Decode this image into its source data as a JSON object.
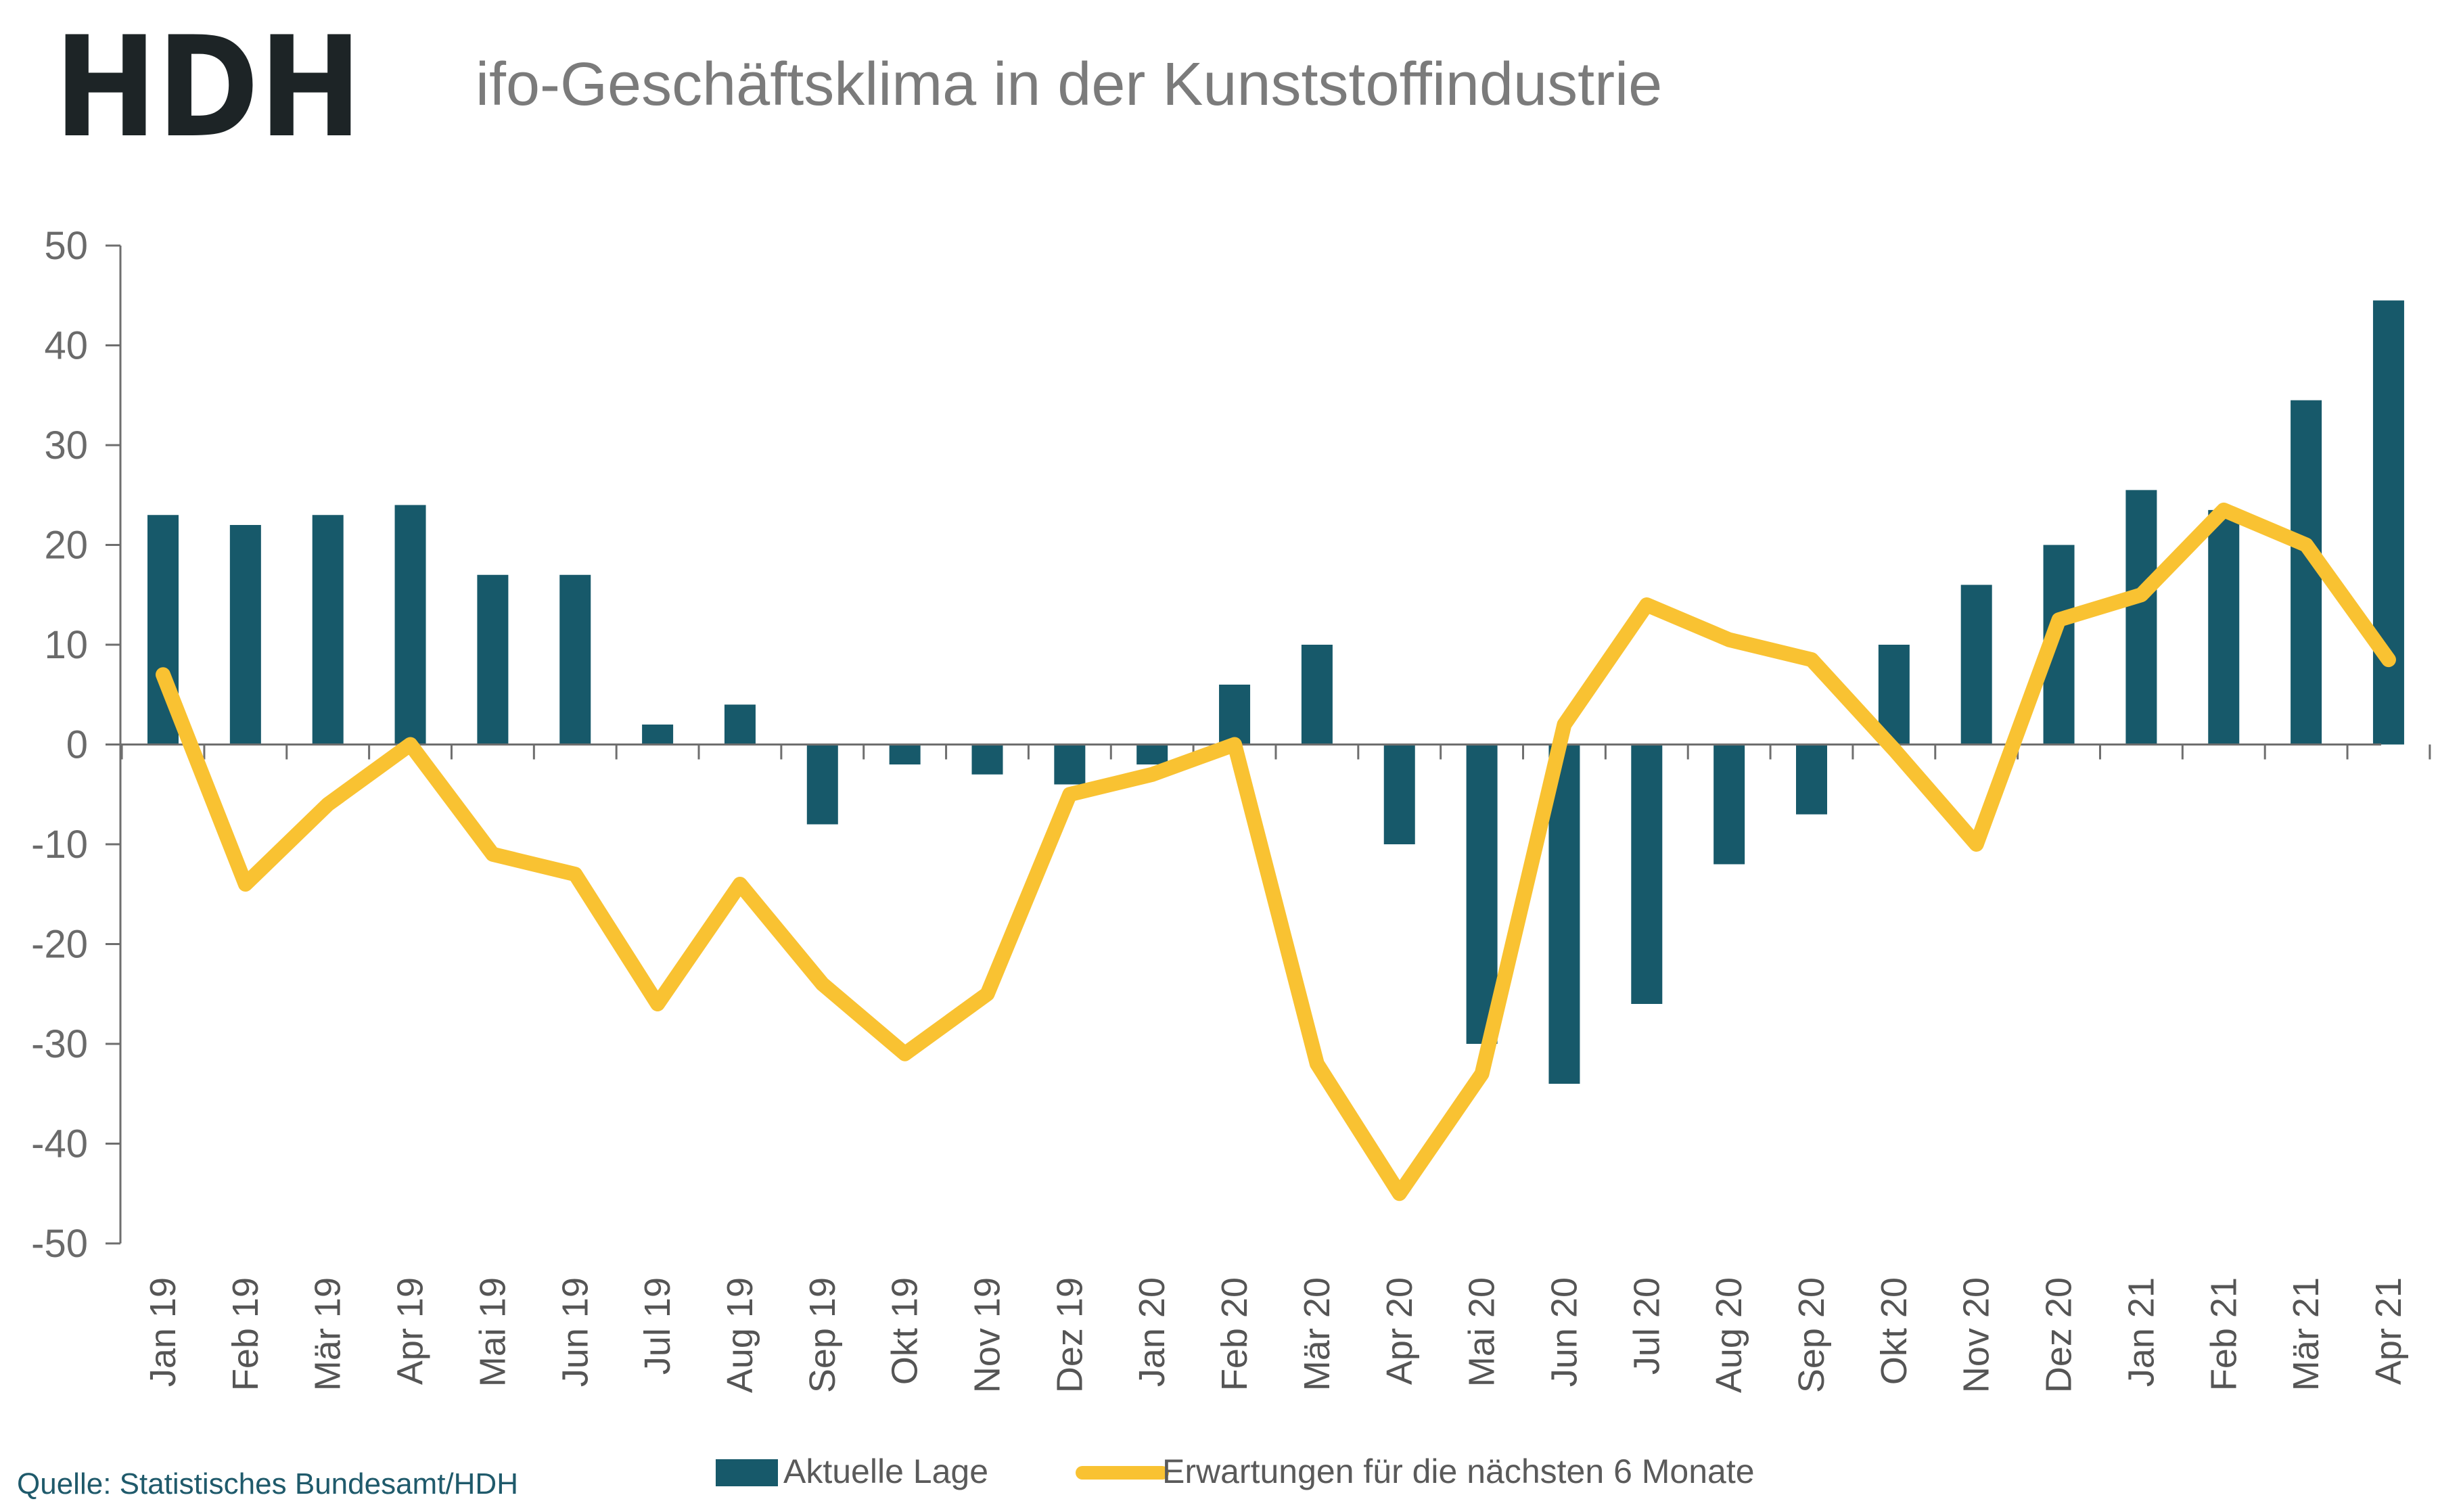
{
  "logo_text": "HDH",
  "source_text": "Quelle: Statistisches Bundesamt/HDH",
  "colors": {
    "bar": "#17596a",
    "line": "#f9c232",
    "axis": "#6e6e6e"
  },
  "chart_data": {
    "type": "bar+line",
    "title": "ifo-Geschäftsklima in der Kunststoffindustrie",
    "ylim": [
      -50,
      50
    ],
    "yticks": [
      50,
      40,
      30,
      20,
      10,
      0,
      -10,
      -20,
      -30,
      -40,
      -50
    ],
    "categories": [
      "Jan 19",
      "Feb 19",
      "Mär 19",
      "Apr 19",
      "Mai 19",
      "Jun 19",
      "Jul 19",
      "Aug 19",
      "Sep 19",
      "Okt 19",
      "Nov 19",
      "Dez 19",
      "Jan 20",
      "Feb 20",
      "Mär 20",
      "Apr 20",
      "Mai 20",
      "Jun 20",
      "Jul 20",
      "Aug 20",
      "Sep 20",
      "Okt 20",
      "Nov 20",
      "Dez 20",
      "Jan 21",
      "Feb 21",
      "Mär 21",
      "Apr 21"
    ],
    "series": [
      {
        "name": "Aktuelle Lage",
        "type": "bar",
        "values": [
          23,
          22,
          23,
          24,
          17,
          17,
          2,
          4,
          -8,
          -2,
          -3,
          -4,
          -2,
          6,
          10,
          -10,
          -30,
          -34,
          -26,
          -12,
          -7,
          10,
          16,
          20,
          25.5,
          23.5,
          34.5,
          44.5
        ]
      },
      {
        "name": "Erwartungen für die nächsten 6 Monate",
        "type": "line",
        "values": [
          7,
          -14,
          -6,
          0,
          -11,
          -13,
          -26,
          -14,
          -24,
          -31,
          -25,
          -5,
          -3,
          0,
          -32,
          -45,
          -33,
          2,
          14,
          10.5,
          8.5,
          -0.5,
          -10,
          12.5,
          15,
          23.5,
          20,
          8.5
        ]
      }
    ],
    "legend_position": "bottom"
  }
}
